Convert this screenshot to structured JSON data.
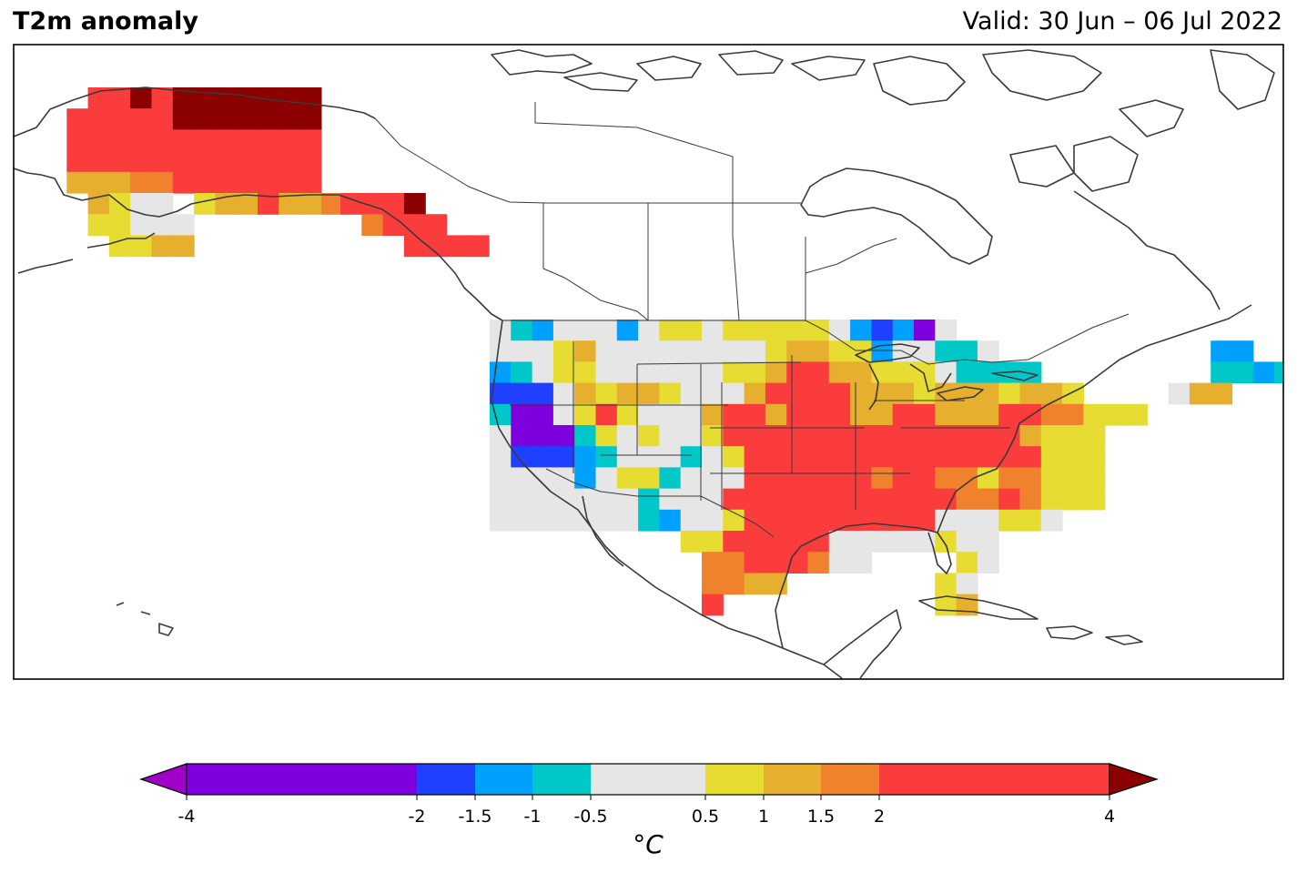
{
  "header": {
    "title": "T2m anomaly",
    "valid": "Valid: 30 Jun – 06 Jul 2022"
  },
  "colorbar": {
    "unit": "°C",
    "ticks": [
      "-4",
      "-2",
      "-1.5",
      "-1",
      "-0.5",
      "0.5",
      "1",
      "1.5",
      "2",
      "4"
    ],
    "bins": [
      {
        "from": -4,
        "to": -2,
        "color": "#7f00df"
      },
      {
        "from": -2,
        "to": -1.5,
        "color": "#2040ff"
      },
      {
        "from": -1.5,
        "to": -1,
        "color": "#00a0ff"
      },
      {
        "from": -1,
        "to": -0.5,
        "color": "#00c8c8"
      },
      {
        "from": -0.5,
        "to": 0.5,
        "color": "#e6e6e6"
      },
      {
        "from": 0.5,
        "to": 1,
        "color": "#e6dc32"
      },
      {
        "from": 1,
        "to": 1.5,
        "color": "#e6af2d"
      },
      {
        "from": 1.5,
        "to": 2,
        "color": "#f0822d"
      },
      {
        "from": 2,
        "to": 4,
        "color": "#fa3c3c"
      }
    ],
    "under_color": "#a000c8",
    "over_color": "#8b0000"
  },
  "map": {
    "region": "North America",
    "projection": "PlateCarree",
    "cell_size_deg": 2.5,
    "legend": {
      "P": "#7f00df",
      "B": "#2040ff",
      "S": "#00a0ff",
      "C": "#00c8c8",
      "G": "#e6e6e6",
      "Y": "#e6dc32",
      "O": "#e6af2d",
      "R": "#f0822d",
      "X": "#fa3c3c",
      "D": "#8b0000"
    },
    "grids": [
      {
        "region": "Alaska",
        "cols": 13,
        "rows": [
          "..XXDXDDDDDDD",
          ".XXXXXDDDDDDD",
          ".XXXXXXXXXXXX",
          ".XXXXXXXXXXXX",
          ".OOORRXXXXXXX",
          "..OYGG.YOOXOOR",
          "..YYGGG...",
          "...YYOO"
        ]
      },
      {
        "region": "Panhandle",
        "cols": 6,
        "rows": [
          "XXXD",
          ".RXXX",
          "...XXXX"
        ]
      },
      {
        "region": "CONUS",
        "cols": 30,
        "rows": [
          "GCSGGGSGYYGYYYYYGSBSPG",
          "GGGYOGGGGGGGGYOOYYSGGCCG..........SS",
          "SCGYYGGGGGGYYOXXOOYYYGCCCC........CCSCCS",
          "BBBGOYOOYGGGOXXXXOOOYOOOYOOY....GOO",
          "CPPGYXYGGGOXXOXXXOOXXOOOXXRRYYY",
          "GPPPCYGYGGYXXXXXXXXXXXXXXOYYY",
          "GBBBSCGGGCGYXXXXXXXXXXXXXXYYY",
          "GGGGSGYYCGGGXXXXXXRXXRRYRRYYY",
          "GGGGGGGCGGGXXXXXXXXXXXRRXRYYY",
          "GGGGGGGCSGGYXXXXXXXXXGGGYYG",
          ".........YYXXXXXGGGGGYGG",
          "..........RRXXXRGG....YG",
          "..........RROO.......YG",
          "..........X..........YO"
        ]
      }
    ]
  }
}
